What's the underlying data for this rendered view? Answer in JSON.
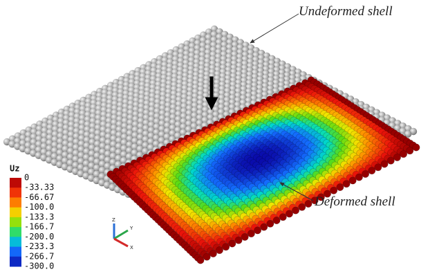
{
  "annotations": {
    "undeformed": "Undeformed shell",
    "deformed": "Deformed shell"
  },
  "legend": {
    "title": "Uz",
    "labels": [
      "0",
      "-33.33",
      "-66.67",
      "-100.0",
      "-133.3",
      "-166.7",
      "-200.0",
      "-233.3",
      "-266.7",
      "-300.0"
    ]
  },
  "triad": {
    "z": "Z",
    "y": "Y",
    "x": "X"
  }
}
